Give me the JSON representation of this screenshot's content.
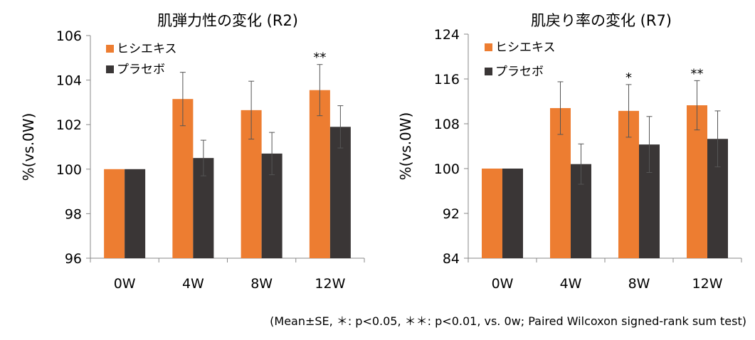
{
  "colors": {
    "treatment": "#ED7D31",
    "placebo": "#3A3636",
    "axis": "#888888"
  },
  "footnote": "(Mean±SE, ＊: p<0.05, ＊＊: p<0.01, vs. 0w; Paired Wilcoxon signed-rank sum test)",
  "chart_data": [
    {
      "type": "bar",
      "title": "肌弾力性の変化 (R2)",
      "ylabel": "%(vs.0W)",
      "xlabel": "",
      "ylim": [
        96,
        106
      ],
      "yticks": [
        96,
        98,
        100,
        102,
        104,
        106
      ],
      "categories": [
        "0W",
        "4W",
        "8W",
        "12W"
      ],
      "legend_position": "top-left",
      "grid": false,
      "series": [
        {
          "name": "ヒシエキス",
          "color": "#ED7D31",
          "values": [
            100,
            103.15,
            102.65,
            103.55
          ],
          "errors": [
            0,
            1.2,
            1.3,
            1.15
          ]
        },
        {
          "name": "プラセボ",
          "color": "#3A3636",
          "values": [
            100,
            100.5,
            100.7,
            101.9
          ],
          "errors": [
            0,
            0.8,
            0.95,
            0.95
          ]
        }
      ],
      "significance": [
        {
          "category": "12W",
          "label": "**"
        }
      ]
    },
    {
      "type": "bar",
      "title": "肌戻り率の変化 (R7)",
      "ylabel": "%(vs.0W)",
      "xlabel": "",
      "ylim": [
        84,
        124
      ],
      "yticks": [
        84,
        92,
        100,
        108,
        116,
        124
      ],
      "categories": [
        "0W",
        "4W",
        "8W",
        "12W"
      ],
      "legend_position": "top-left",
      "grid": false,
      "series": [
        {
          "name": "ヒシエキス",
          "color": "#ED7D31",
          "values": [
            100,
            110.8,
            110.3,
            111.3
          ],
          "errors": [
            0,
            4.7,
            4.7,
            4.4
          ]
        },
        {
          "name": "プラセボ",
          "color": "#3A3636",
          "values": [
            100,
            100.8,
            104.3,
            105.3
          ],
          "errors": [
            0,
            3.6,
            5.0,
            5.0
          ]
        }
      ],
      "significance": [
        {
          "category": "8W",
          "label": "*"
        },
        {
          "category": "12W",
          "label": "**"
        }
      ]
    }
  ]
}
